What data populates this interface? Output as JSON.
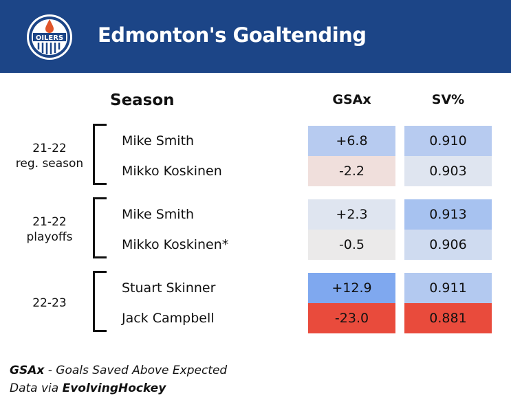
{
  "header": {
    "title": "Edmonton's Goaltending",
    "logo_text": "OILERS",
    "color": "#1c4587"
  },
  "columns": {
    "season": "Season",
    "gsax": "GSAx",
    "svpct": "SV%"
  },
  "chart_data": {
    "type": "table",
    "title": "Edmonton's Goaltending",
    "groups": [
      {
        "label_line1": "21-22",
        "label_line2": "reg. season",
        "rows": [
          {
            "name": "Mike Smith",
            "gsax": "+6.8",
            "sv": "0.910",
            "gsax_color": "#b7cbf0",
            "sv_color": "#b7cbf0"
          },
          {
            "name": "Mikko Koskinen",
            "gsax": "-2.2",
            "sv": "0.903",
            "gsax_color": "#f0dfdc",
            "sv_color": "#dfe5f0"
          }
        ]
      },
      {
        "label_line1": "21-22",
        "label_line2": "playoffs",
        "rows": [
          {
            "name": "Mike Smith",
            "gsax": "+2.3",
            "sv": "0.913",
            "gsax_color": "#dfe5f0",
            "sv_color": "#a7c2f0"
          },
          {
            "name": "Mikko Koskinen*",
            "gsax": "-0.5",
            "sv": "0.906",
            "gsax_color": "#ebeaea",
            "sv_color": "#cfdbf0"
          }
        ]
      },
      {
        "label_line1": "22-23",
        "label_line2": "",
        "rows": [
          {
            "name": "Stuart Skinner",
            "gsax": "+12.9",
            "sv": "0.911",
            "gsax_color": "#7fa8ef",
            "sv_color": "#b3c9f0"
          },
          {
            "name": "Jack Campbell",
            "gsax": "-23.0",
            "sv": "0.881",
            "gsax_color": "#e94b3c",
            "sv_color": "#e94b3c"
          }
        ]
      }
    ]
  },
  "footer": {
    "gsax_abbr": "GSAx",
    "gsax_def": " - Goals Saved Above Expected",
    "data_prefix": "Data via ",
    "source": "EvolvingHockey"
  }
}
